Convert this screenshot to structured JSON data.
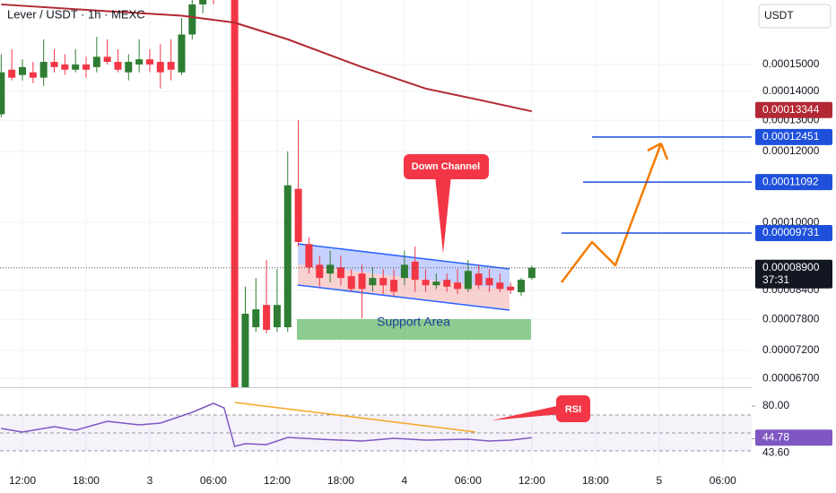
{
  "chart_data": [
    {
      "type": "candlestick",
      "title": "Lever / USDT · 1h · MEXC",
      "currency": "USDT",
      "log_scale": true,
      "grid": true,
      "up_color": "#2e7d32",
      "down_color": "#f23645",
      "xlim": [
        -2.113,
        68.72
      ],
      "ylim": [
        6.55e-05,
        0.000177
      ],
      "xticks": [
        {
          "value": 0,
          "label": "12:00"
        },
        {
          "value": 6,
          "label": "18:00"
        },
        {
          "value": 12,
          "label": "3"
        },
        {
          "value": 18,
          "label": "06:00"
        },
        {
          "value": 24,
          "label": "12:00"
        },
        {
          "value": 30,
          "label": "18:00"
        },
        {
          "value": 36,
          "label": "4"
        },
        {
          "value": 42,
          "label": "06:00"
        },
        {
          "value": 48,
          "label": "12:00"
        },
        {
          "value": 54,
          "label": "18:00"
        },
        {
          "value": 60,
          "label": "5"
        },
        {
          "value": 66,
          "label": "06:00"
        }
      ],
      "yticks": [
        {
          "value": 0.00015,
          "label": "0.00015000"
        },
        {
          "value": 0.00014,
          "label": "0.00014000"
        },
        {
          "value": 0.00013,
          "label": "0.00013000"
        },
        {
          "value": 0.00012,
          "label": "0.00012000"
        },
        {
          "value": 0.0001,
          "label": "0.00010000"
        },
        {
          "value": 8.4e-05,
          "label": "0.00008400"
        },
        {
          "value": 7.8e-05,
          "label": "0.00007800"
        },
        {
          "value": 7.2e-05,
          "label": "0.00007200"
        },
        {
          "value": 6.7e-05,
          "label": "0.00006700"
        }
      ],
      "x": [
        -2,
        -1,
        0,
        1,
        2,
        3,
        4,
        5,
        6,
        7,
        8,
        9,
        10,
        11,
        12,
        13,
        14,
        15,
        16,
        17,
        18,
        20,
        21,
        22,
        23,
        24,
        25,
        26,
        27,
        28,
        29,
        30,
        31,
        32,
        33,
        34,
        35,
        36,
        37,
        38,
        39,
        40,
        41,
        42,
        43,
        44,
        45,
        46,
        47,
        48
      ],
      "open": [
        0.000132,
        0.000148,
        0.000146,
        0.000147,
        0.000145,
        0.000151,
        0.00015,
        0.000148,
        0.00015,
        0.000149,
        0.000153,
        0.000151,
        0.000147,
        0.00015,
        0.000152,
        0.000151,
        0.000151,
        0.000147,
        0.000162,
        0.000175,
        0.000179,
        0.000181,
        6.55e-05,
        7.64e-05,
        8.09e-05,
        7.64e-05,
        7.64e-05,
        0.000109,
        9.46e-05,
        8.97e-05,
        8.77e-05,
        8.91e-05,
        8.71e-05,
        8.77e-05,
        8.51e-05,
        8.67e-05,
        8.63e-05,
        8.67e-05,
        9.04e-05,
        8.63e-05,
        8.51e-05,
        8.63e-05,
        8.57e-05,
        8.43e-05,
        8.77e-05,
        8.67e-05,
        8.57e-05,
        8.48e-05,
        8.36e-05,
        8.67e-05
      ],
      "high": [
        0.000154,
        0.000156,
        0.000152,
        0.000151,
        0.00016,
        0.000156,
        0.000154,
        0.000156,
        0.000153,
        0.000161,
        0.00016,
        0.000156,
        0.000154,
        0.00016,
        0.000156,
        0.000158,
        0.00016,
        0.000169,
        0.000185,
        0.000185,
        0.000185,
        0.000185,
        8.48e-05,
        8.67e-05,
        9.08e-05,
        8.87e-05,
        0.00012,
        0.00013,
        9.62e-05,
        9.18e-05,
        9.3e-05,
        9.18e-05,
        8.87e-05,
        8.97e-05,
        8.91e-05,
        8.87e-05,
        8.87e-05,
        9.3e-05,
        9.4e-05,
        8.87e-05,
        8.77e-05,
        8.77e-05,
        8.87e-05,
        9.08e-05,
        8.97e-05,
        8.87e-05,
        8.77e-05,
        8.57e-05,
        8.67e-05,
        8.95e-05
      ],
      "low": [
        0.000131,
        0.000144,
        0.000144,
        0.000143,
        0.000142,
        0.000147,
        0.000146,
        0.000147,
        0.000145,
        0.000147,
        0.00015,
        0.000147,
        0.000144,
        0.000147,
        0.000147,
        0.000141,
        0.000144,
        0.000146,
        0.00016,
        0.000171,
        0.000175,
        6.3e-05,
        6.43e-05,
        7.55e-05,
        7.52e-05,
        7.55e-05,
        7.55e-05,
        9.4e-05,
        8.77e-05,
        8.48e-05,
        8.57e-05,
        8.51e-05,
        8.37e-05,
        7.82e-05,
        8.37e-05,
        8.32e-05,
        8.28e-05,
        8.51e-05,
        8.37e-05,
        8.37e-05,
        8.43e-05,
        8.37e-05,
        8.32e-05,
        8.36e-05,
        8.43e-05,
        8.37e-05,
        8.36e-05,
        8.32e-05,
        8.28e-05,
        8.63e-05
      ],
      "close": [
        0.000147,
        0.000145,
        0.000149,
        0.000145,
        0.000151,
        0.000149,
        0.000148,
        0.00015,
        0.000148,
        0.000153,
        0.000151,
        0.000148,
        0.000151,
        0.000152,
        0.00015,
        0.000147,
        0.000148,
        0.000162,
        0.000175,
        0.000181,
        0.000177,
        6.3e-05,
        7.91e-05,
        8e-05,
        7.59e-05,
        8.09e-05,
        0.00011,
        9.51e-05,
        8.91e-05,
        8.67e-05,
        8.97e-05,
        8.67e-05,
        8.43e-05,
        8.43e-05,
        8.67e-05,
        8.51e-05,
        8.37e-05,
        8.97e-05,
        8.63e-05,
        8.51e-05,
        8.59e-05,
        8.48e-05,
        8.43e-05,
        8.83e-05,
        8.51e-05,
        8.51e-05,
        8.43e-05,
        8.4e-05,
        8.63e-05,
        8.9e-05
      ],
      "moving_average": {
        "color": "#b22833",
        "x": [
          -2,
          8,
          15,
          20,
          25,
          32,
          38,
          43,
          48
        ],
        "values": [
          0.000175,
          0.000172,
          0.00017,
          0.000167,
          0.00016,
          0.000149,
          0.000141,
          0.000137,
          0.000133
        ]
      },
      "levels": [
        {
          "value": 0.00013344,
          "label": "0.00013344",
          "color": "#b22833"
        },
        {
          "value": 0.00012451,
          "label": "0.00012451",
          "color": "#1e50dc"
        },
        {
          "value": 0.00011092,
          "label": "0.00011092",
          "color": "#1e50dc"
        },
        {
          "value": 9.731e-05,
          "label": "0.00009731",
          "color": "#1e50dc"
        }
      ],
      "last_price": {
        "value": 8.9e-05,
        "label": "0.00008900",
        "countdown": "37:31"
      },
      "annotations": [
        "Down Channel",
        "Support Area"
      ]
    },
    {
      "type": "line",
      "annotation": "RSI",
      "color": "#7e57c2",
      "ylim": [
        13,
        97
      ],
      "yticks": [
        {
          "value": 80,
          "label": "80.00"
        },
        {
          "value": 43.6,
          "label": "43.60"
        }
      ],
      "bands": [
        70,
        50,
        30
      ],
      "x": [
        -2,
        0,
        3,
        5,
        8,
        11,
        13,
        16,
        18,
        19,
        20,
        21,
        23,
        25,
        28,
        32,
        35,
        38,
        42,
        44,
        46,
        48
      ],
      "values": [
        55,
        51,
        57,
        53,
        63,
        59,
        61,
        73,
        83,
        78,
        35,
        38,
        37,
        45,
        43,
        41,
        44,
        42,
        43,
        41,
        42,
        44.78
      ]
    }
  ]
}
